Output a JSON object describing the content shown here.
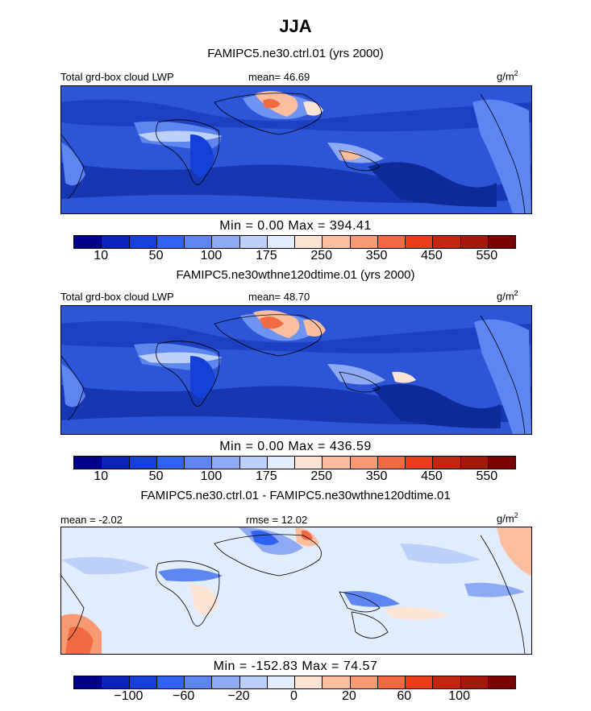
{
  "title": "JJA",
  "units_text": "g/m",
  "units_exp": "2",
  "lwp_palette": [
    "#00008b",
    "#0a23b6",
    "#1540d8",
    "#2f62f0",
    "#5d86f2",
    "#8eaaf5",
    "#bdd0fa",
    "#e1ecfd",
    "#fde3d4",
    "#fbbfa0",
    "#f79a73",
    "#f26a42",
    "#e93d19",
    "#c3260e",
    "#a31a08",
    "#7b0000"
  ],
  "diff_palette": [
    "#00008b",
    "#0a23b6",
    "#1540d8",
    "#2f62f0",
    "#5d86f2",
    "#8eaaf5",
    "#bdd0fa",
    "#e1ecfd",
    "#fde3d4",
    "#fbbfa0",
    "#f79a73",
    "#f26a42",
    "#e93d19",
    "#c3260e",
    "#a31a08",
    "#7b0000"
  ],
  "panels": [
    {
      "title": "FAMIPC5.ne30.ctrl.01 (yrs 2000)",
      "left_label": "Total grd-box cloud LWP",
      "stat_label": "mean=  46.69",
      "minmax": "Min =    0.00  Max =  394.41",
      "ticks": [
        "10",
        "50",
        "100",
        "175",
        "250",
        "350",
        "450",
        "550"
      ]
    },
    {
      "title": "FAMIPC5.ne30wthne120dtime.01 (yrs 2000)",
      "left_label": "Total grd-box cloud LWP",
      "stat_label": "mean=  48.70",
      "minmax": "Min =    0.00  Max = 436.59",
      "ticks": [
        "10",
        "50",
        "100",
        "175",
        "250",
        "350",
        "450",
        "550"
      ]
    },
    {
      "title": "FAMIPC5.ne30.ctrl.01 - FAMIPC5.ne30wthne120dtime.01",
      "left_label": "mean =  -2.02",
      "stat_label": "rmse =  12.02",
      "minmax": "Min = -152.83  Max =   74.57",
      "ticks": [
        "-100",
        "-60",
        "-20",
        "0",
        "20",
        "60",
        "100"
      ]
    }
  ]
}
